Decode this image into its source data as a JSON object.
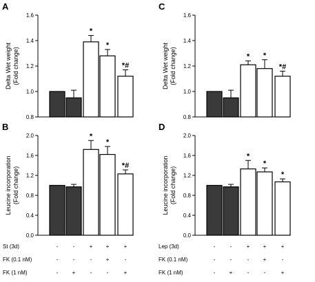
{
  "colors": {
    "control_bar": "#3a3a3a",
    "treated_bar": "#ffffff",
    "stroke": "#000000"
  },
  "chart_data": [
    {
      "panel": "A",
      "type": "bar",
      "ylabel": [
        "Delta Wet weight",
        "(Fold change)"
      ],
      "ylim": [
        0.8,
        1.6
      ],
      "yticks": [
        "0.8",
        "1.0",
        "1.2",
        "1.4",
        "1.6"
      ],
      "values": [
        1.0,
        0.95,
        1.39,
        1.28,
        1.12
      ],
      "errors": [
        0,
        0.06,
        0.05,
        0.05,
        0.05
      ],
      "bar_fill": [
        "control",
        "control",
        "treated",
        "treated",
        "treated"
      ],
      "annotations": [
        "",
        "",
        "*",
        "*",
        "*#"
      ]
    },
    {
      "panel": "B",
      "type": "bar",
      "ylabel": [
        "Leucine incorporation",
        "(Fold change)"
      ],
      "ylim": [
        0.0,
        2.0
      ],
      "yticks": [
        "0.0",
        "0.4",
        "0.8",
        "1.2",
        "1.6",
        "2.0"
      ],
      "values": [
        1.0,
        0.97,
        1.72,
        1.62,
        1.23
      ],
      "errors": [
        0,
        0.05,
        0.18,
        0.16,
        0.08
      ],
      "bar_fill": [
        "control",
        "control",
        "treated",
        "treated",
        "treated"
      ],
      "annotations": [
        "",
        "",
        "*",
        "*",
        "*#"
      ]
    },
    {
      "panel": "C",
      "type": "bar",
      "ylabel": [
        "Delta Wet weight",
        "(Fold change)"
      ],
      "ylim": [
        0.8,
        1.6
      ],
      "yticks": [
        "0.8",
        "1.0",
        "1.2",
        "1.4",
        "1.6"
      ],
      "values": [
        1.0,
        0.95,
        1.21,
        1.18,
        1.12
      ],
      "errors": [
        0,
        0.06,
        0.03,
        0.07,
        0.04
      ],
      "bar_fill": [
        "control",
        "control",
        "treated",
        "treated",
        "treated"
      ],
      "annotations": [
        "",
        "",
        "*",
        "*",
        "*#"
      ]
    },
    {
      "panel": "D",
      "type": "bar",
      "ylabel": [
        "Leucine incorporation",
        "(Fold change)"
      ],
      "ylim": [
        0.0,
        2.0
      ],
      "yticks": [
        "0.0",
        "0.4",
        "0.8",
        "1.2",
        "1.6",
        "2.0"
      ],
      "values": [
        1.0,
        0.97,
        1.33,
        1.27,
        1.07
      ],
      "errors": [
        0,
        0.05,
        0.17,
        0.08,
        0.06
      ],
      "bar_fill": [
        "control",
        "control",
        "treated",
        "treated",
        "treated"
      ],
      "annotations": [
        "",
        "",
        "*",
        "*",
        "*"
      ]
    }
  ],
  "conditions_left": {
    "rows": [
      {
        "label": "St (3d)",
        "signs": [
          "-",
          "-",
          "+",
          "+",
          "+"
        ]
      },
      {
        "label": "FK (0.1 nM)",
        "signs": [
          "-",
          "-",
          "-",
          "+",
          "-"
        ]
      },
      {
        "label": "FK (1 nM)",
        "signs": [
          "-",
          "+",
          "-",
          "-",
          "+"
        ]
      }
    ]
  },
  "conditions_right": {
    "rows": [
      {
        "label": "Lep (3d)",
        "signs": [
          "-",
          "-",
          "+",
          "+",
          "+"
        ]
      },
      {
        "label": "FK (0.1 nM)",
        "signs": [
          "-",
          "-",
          "-",
          "+",
          "-"
        ]
      },
      {
        "label": "FK (1 nM)",
        "signs": [
          "-",
          "+",
          "-",
          "-",
          "+"
        ]
      }
    ]
  }
}
